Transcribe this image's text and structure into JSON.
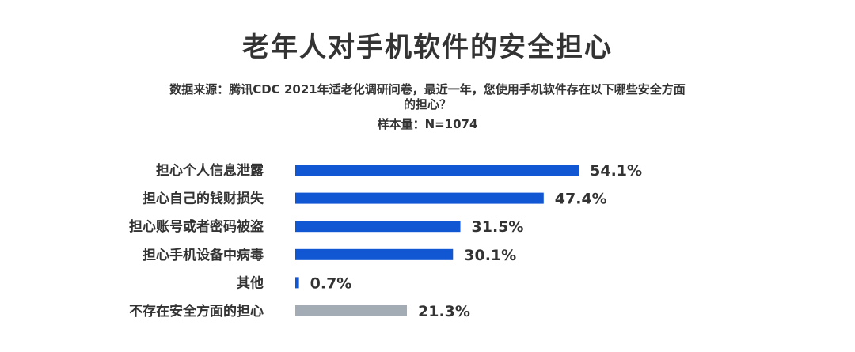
{
  "header": {
    "title": "老年人对手机软件的安全担心",
    "source_line1": "数据来源：腾讯CDC 2021年适老化调研问卷，最近一年，您使用手机软件存在以下哪些安全方面",
    "source_line2": "的担心？",
    "sample_size": "样本量：N=1074"
  },
  "chart_data": {
    "type": "bar",
    "orientation": "horizontal",
    "title": "老年人对手机软件的安全担心",
    "xlabel": "",
    "ylabel": "",
    "unit": "%",
    "xlim": [
      0,
      60
    ],
    "grid": false,
    "legend": "none",
    "categories": [
      "担心个人信息泄露",
      "担心自己的钱财损失",
      "担心账号或者密码被盗",
      "担心手机设备中病毒",
      "其他",
      "不存在安全方面的担心"
    ],
    "values": [
      54.1,
      47.4,
      31.5,
      30.1,
      0.7,
      21.3
    ],
    "value_labels": [
      "54.1%",
      "47.4%",
      "31.5%",
      "30.1%",
      "0.7%",
      "21.3%"
    ],
    "colors": [
      "#1157d4",
      "#1157d4",
      "#1157d4",
      "#1157d4",
      "#1157d4",
      "#a3acb5"
    ]
  }
}
